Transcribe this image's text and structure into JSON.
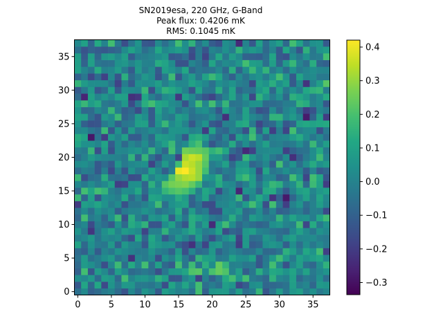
{
  "chart_data": {
    "type": "heatmap",
    "title_lines": [
      "SN2019esa, 220 GHz, G-Band",
      "Peak flux: 0.4206 mK",
      "RMS: 0.1045 mK"
    ],
    "xlabel": "",
    "ylabel": "",
    "grid_size": 38,
    "xlim": [
      -0.5,
      37.5
    ],
    "ylim": [
      -0.5,
      37.5
    ],
    "x_ticks": [
      0,
      5,
      10,
      15,
      20,
      25,
      30,
      35
    ],
    "y_ticks": [
      0,
      5,
      10,
      15,
      20,
      25,
      30,
      35
    ],
    "colorscale": "viridis",
    "colorbar": {
      "vmin": -0.336,
      "vmax": 0.4206,
      "ticks": [
        0.4,
        0.3,
        0.2,
        0.1,
        0.0,
        -0.1,
        -0.2,
        -0.3
      ],
      "tick_labels": [
        "0.4",
        "0.3",
        "0.2",
        "0.1",
        "0.0",
        "−0.1",
        "−0.2",
        "−0.3"
      ]
    },
    "peak_value": 0.4206,
    "rms": 0.1045,
    "source": {
      "peak": [
        16,
        18
      ],
      "cells": [
        [
          13,
          15,
          0.16
        ],
        [
          14,
          15,
          0.2
        ],
        [
          15,
          15,
          0.22
        ],
        [
          16,
          15,
          0.2
        ],
        [
          17,
          15,
          0.14
        ],
        [
          13,
          16,
          0.22
        ],
        [
          14,
          16,
          0.26
        ],
        [
          15,
          16,
          0.27
        ],
        [
          16,
          16,
          0.28
        ],
        [
          17,
          16,
          0.24
        ],
        [
          18,
          16,
          0.17
        ],
        [
          14,
          17,
          0.22
        ],
        [
          15,
          17,
          0.3
        ],
        [
          16,
          17,
          0.33
        ],
        [
          17,
          17,
          0.34
        ],
        [
          18,
          17,
          0.3
        ],
        [
          15,
          18,
          0.4
        ],
        [
          16,
          18,
          0.4206
        ],
        [
          17,
          18,
          0.36
        ],
        [
          18,
          18,
          0.3
        ],
        [
          15,
          19,
          0.18
        ],
        [
          16,
          19,
          0.36
        ],
        [
          17,
          19,
          0.34
        ],
        [
          18,
          19,
          0.3
        ],
        [
          19,
          19,
          0.22
        ],
        [
          16,
          20,
          0.32
        ],
        [
          17,
          20,
          0.36
        ],
        [
          18,
          20,
          0.34
        ],
        [
          19,
          20,
          0.24
        ],
        [
          16,
          21,
          0.26
        ],
        [
          17,
          21,
          0.25
        ],
        [
          18,
          21,
          0.24
        ],
        [
          19,
          21,
          0.22
        ],
        [
          20,
          21,
          0.15
        ],
        [
          17,
          22,
          0.15
        ],
        [
          18,
          22,
          0.2
        ],
        [
          17,
          23,
          0.12
        ],
        [
          18,
          23,
          0.14
        ],
        [
          17,
          3,
          0.21
        ],
        [
          18,
          3,
          0.22
        ],
        [
          20,
          3,
          0.2
        ],
        [
          21,
          3,
          0.24
        ],
        [
          22,
          3,
          0.21
        ],
        [
          19,
          4,
          0.14
        ],
        [
          21,
          4,
          0.24
        ],
        [
          22,
          4,
          0.16
        ]
      ]
    }
  }
}
